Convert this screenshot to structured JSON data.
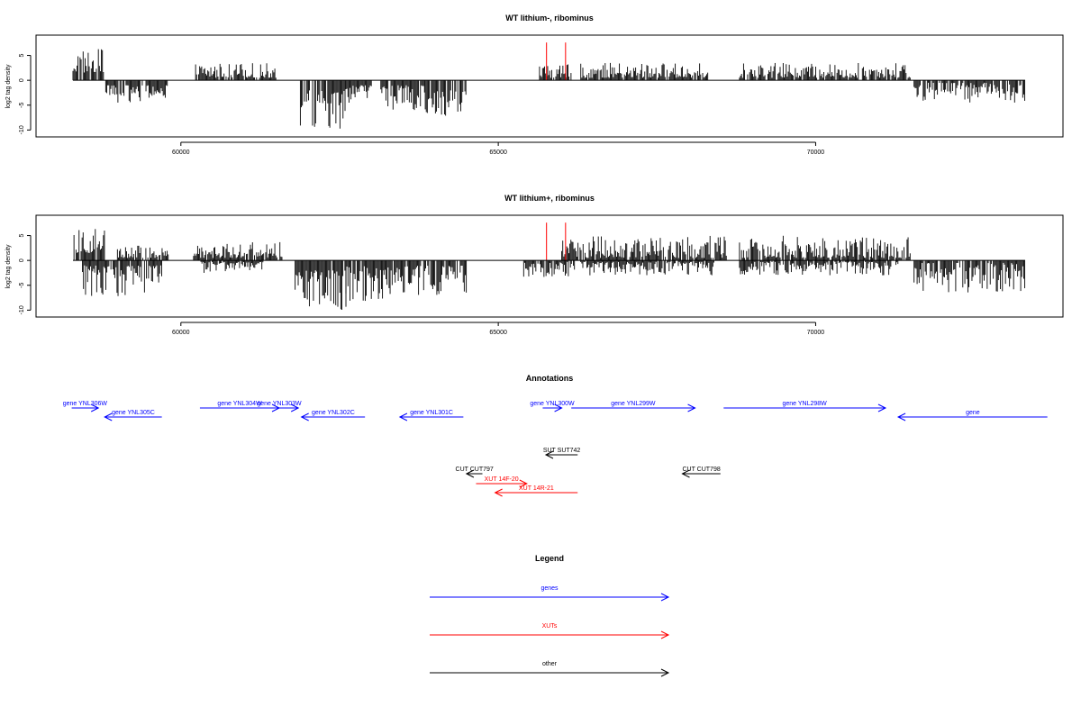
{
  "chart_data": [
    {
      "type": "bar",
      "title": "WT lithium-, ribominus",
      "ylabel": "log2 tag density",
      "xlim": [
        58000,
        73500
      ],
      "ylim": [
        -10,
        8
      ],
      "yticks": [
        -10,
        -5,
        0,
        5
      ],
      "xticks": [
        60000,
        65000,
        70000
      ],
      "bar_color": "#000000",
      "highlight_color": "#ff0000",
      "highlight_positions": [
        65760,
        66060
      ],
      "signal_segments": [
        {
          "start": 58300,
          "end": 58780,
          "sign": 1,
          "min": 1.5,
          "max": 6.3
        },
        {
          "start": 58800,
          "end": 59400,
          "sign": -1,
          "min": 1,
          "max": 4.5
        },
        {
          "start": 59450,
          "end": 59800,
          "sign": -1,
          "min": 1,
          "max": 3.5
        },
        {
          "start": 60200,
          "end": 61500,
          "sign": 1,
          "min": 0.5,
          "max": 3.5
        },
        {
          "start": 61850,
          "end": 62600,
          "sign": -1,
          "min": 2,
          "max": 10
        },
        {
          "start": 62600,
          "end": 63000,
          "sign": -1,
          "min": 1,
          "max": 4.5
        },
        {
          "start": 63150,
          "end": 63850,
          "sign": -1,
          "min": 1,
          "max": 6.5
        },
        {
          "start": 63850,
          "end": 64500,
          "sign": -1,
          "min": 2,
          "max": 7.5
        },
        {
          "start": 65650,
          "end": 66150,
          "sign": 1,
          "min": 0.5,
          "max": 3.2
        },
        {
          "start": 66300,
          "end": 68300,
          "sign": 1,
          "min": 0.5,
          "max": 3.5
        },
        {
          "start": 68800,
          "end": 71500,
          "sign": 1,
          "min": 0.5,
          "max": 3.5
        },
        {
          "start": 71550,
          "end": 73300,
          "sign": -1,
          "min": 0.5,
          "max": 4.5
        }
      ]
    },
    {
      "type": "bar",
      "title": "WT lithium+, ribominus",
      "ylabel": "log2 tag density",
      "xlim": [
        58000,
        73500
      ],
      "ylim": [
        -10,
        8
      ],
      "yticks": [
        -10,
        -5,
        0,
        5
      ],
      "xticks": [
        60000,
        65000,
        70000
      ],
      "bar_color": "#000000",
      "highlight_color": "#ff0000",
      "highlight_positions": [
        65760,
        66060
      ],
      "signal_segments": [
        {
          "start": 58300,
          "end": 58800,
          "sign": 1,
          "min": 1.5,
          "max": 7
        },
        {
          "start": 58450,
          "end": 59700,
          "sign": -1,
          "min": 1,
          "max": 7.2
        },
        {
          "start": 59000,
          "end": 59800,
          "sign": 1,
          "min": 0.5,
          "max": 3
        },
        {
          "start": 60200,
          "end": 61600,
          "sign": 1,
          "min": 0.5,
          "max": 3.8
        },
        {
          "start": 60300,
          "end": 61300,
          "sign": -1,
          "min": 0.3,
          "max": 2.5
        },
        {
          "start": 61800,
          "end": 62600,
          "sign": -1,
          "min": 2,
          "max": 10
        },
        {
          "start": 62600,
          "end": 63200,
          "sign": -1,
          "min": 1,
          "max": 8.5
        },
        {
          "start": 63200,
          "end": 64500,
          "sign": -1,
          "min": 1,
          "max": 7
        },
        {
          "start": 65400,
          "end": 66200,
          "sign": -1,
          "min": 0.3,
          "max": 3.5
        },
        {
          "start": 66000,
          "end": 68600,
          "sign": 1,
          "min": 0.5,
          "max": 5
        },
        {
          "start": 66300,
          "end": 68400,
          "sign": -1,
          "min": 0.3,
          "max": 3
        },
        {
          "start": 68800,
          "end": 71500,
          "sign": 1,
          "min": 0.5,
          "max": 5
        },
        {
          "start": 68800,
          "end": 71300,
          "sign": -1,
          "min": 0.3,
          "max": 3
        },
        {
          "start": 71550,
          "end": 73300,
          "sign": -1,
          "min": 0.5,
          "max": 6.5
        }
      ]
    }
  ],
  "annotations": {
    "title": "Annotations",
    "colors": {
      "gene": "#0000ff",
      "xut": "#ff0000",
      "other": "#000000"
    },
    "features": [
      {
        "label": "gene YNL306W",
        "kind": "gene",
        "strand": "+",
        "start": 58280,
        "end": 58700,
        "row": 0
      },
      {
        "label": "gene YNL305C",
        "kind": "gene",
        "strand": "-",
        "start": 58800,
        "end": 59700,
        "row": 1
      },
      {
        "label": "gene YNL304W",
        "kind": "gene",
        "strand": "+",
        "start": 60300,
        "end": 61550,
        "row": 0
      },
      {
        "label": "gene YNL303W",
        "kind": "gene",
        "strand": "+",
        "start": 61250,
        "end": 61850,
        "row": 0
      },
      {
        "label": "gene YNL302C",
        "kind": "gene",
        "strand": "-",
        "start": 61900,
        "end": 62900,
        "row": 1
      },
      {
        "label": "gene YNL301C",
        "kind": "gene",
        "strand": "-",
        "start": 63450,
        "end": 64450,
        "row": 1
      },
      {
        "label": "gene YNL300W",
        "kind": "gene",
        "strand": "+",
        "start": 65700,
        "end": 66000,
        "row": 0
      },
      {
        "label": "gene YNL299W",
        "kind": "gene",
        "strand": "+",
        "start": 66150,
        "end": 68100,
        "row": 0
      },
      {
        "label": "gene YNL298W",
        "kind": "gene",
        "strand": "+",
        "start": 68550,
        "end": 71100,
        "row": 0
      },
      {
        "label": "gene",
        "kind": "gene",
        "strand": "-",
        "start": 71300,
        "end": 73650,
        "row": 1
      },
      {
        "label": "SUT SUT742",
        "kind": "other",
        "strand": "-",
        "start": 65750,
        "end": 66250,
        "row": 3
      },
      {
        "label": "CUT CUT797",
        "kind": "other",
        "strand": "-",
        "start": 64500,
        "end": 64750,
        "row": 4
      },
      {
        "label": "CUT CUT798",
        "kind": "other",
        "strand": "-",
        "start": 67900,
        "end": 68500,
        "row": 4
      },
      {
        "label": "XUT 14F-20",
        "kind": "xut",
        "strand": "+",
        "start": 64650,
        "end": 65450,
        "row": 5
      },
      {
        "label": "XUT 14R-21",
        "kind": "xut",
        "strand": "-",
        "start": 64950,
        "end": 66250,
        "row": 6
      }
    ]
  },
  "legend": {
    "title": "Legend",
    "items": [
      {
        "label": "genes",
        "color": "#0000ff"
      },
      {
        "label": "XUTs",
        "color": "#ff0000"
      },
      {
        "label": "other",
        "color": "#000000"
      }
    ]
  }
}
